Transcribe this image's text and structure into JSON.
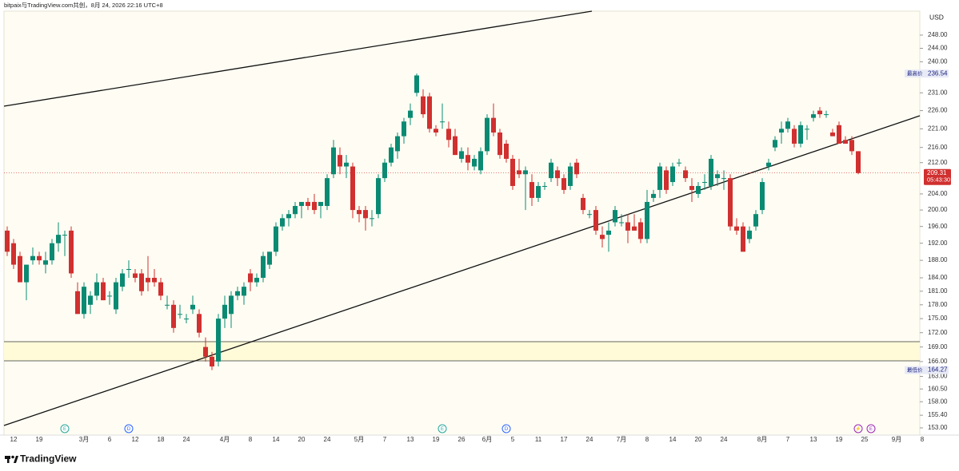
{
  "chart_data": {
    "type": "candlestick",
    "header": "bitpaix与TradingView.com共创，8月 24, 2026 22:16 UTC+8",
    "currency": "USD",
    "brand": "TradingView",
    "log_scale": true,
    "up_color": "#0b8a73",
    "down_color": "#d0302f",
    "ylim": [
      151.65,
      255.4
    ],
    "yticks": [
      {
        "value": 248,
        "label": "248.00"
      },
      {
        "value": 244,
        "label": "244.00"
      },
      {
        "value": 240,
        "label": "240.00"
      },
      {
        "value": 231,
        "label": "231.00"
      },
      {
        "value": 226,
        "label": "226.00"
      },
      {
        "value": 221,
        "label": "221.00"
      },
      {
        "value": 216,
        "label": "216.00"
      },
      {
        "value": 212,
        "label": "212.00"
      },
      {
        "value": 204,
        "label": "204.00"
      },
      {
        "value": 200,
        "label": "200.00"
      },
      {
        "value": 196,
        "label": "196.00"
      },
      {
        "value": 192,
        "label": "192.00"
      },
      {
        "value": 188,
        "label": "188.00"
      },
      {
        "value": 184,
        "label": "184.00"
      },
      {
        "value": 181,
        "label": "181.00"
      },
      {
        "value": 178,
        "label": "178.00"
      },
      {
        "value": 175,
        "label": "175.00"
      },
      {
        "value": 172,
        "label": "172.00"
      },
      {
        "value": 169,
        "label": "169.00"
      },
      {
        "value": 166,
        "label": "166.00"
      },
      {
        "value": 163,
        "label": "163.00"
      },
      {
        "value": 160.5,
        "label": "160.50"
      },
      {
        "value": 158,
        "label": "158.00"
      },
      {
        "value": 155.4,
        "label": "155.40"
      },
      {
        "value": 153,
        "label": "153.00"
      }
    ],
    "high_label": "最高价",
    "high_value": 236.54,
    "low_label": "最低价",
    "low_value": 164.27,
    "last_value": 209.31,
    "countdown": "05:43:30",
    "events": [
      "E",
      "D",
      "E",
      "D",
      "⚡",
      "E"
    ],
    "categories": [
      null,
      "12",
      null,
      null,
      null,
      "19",
      null,
      null,
      null,
      null,
      null,
      null,
      "3月",
      null,
      null,
      null,
      "6",
      null,
      null,
      null,
      "12",
      null,
      null,
      null,
      "18",
      null,
      null,
      null,
      "24",
      null,
      null,
      null,
      null,
      null,
      "4月",
      null,
      null,
      null,
      "8",
      null,
      null,
      null,
      "14",
      null,
      null,
      null,
      "20",
      null,
      null,
      null,
      "24",
      null,
      null,
      null,
      null,
      "5月",
      null,
      null,
      null,
      "7",
      null,
      null,
      null,
      "13",
      null,
      null,
      null,
      "19",
      null,
      null,
      null,
      "26",
      null,
      null,
      null,
      "6月",
      null,
      null,
      null,
      "5",
      null,
      null,
      null,
      "11",
      null,
      null,
      null,
      "17",
      null,
      null,
      null,
      "24",
      null,
      null,
      null,
      null,
      "7月",
      null,
      null,
      null,
      "8",
      null,
      null,
      null,
      "14",
      null,
      null,
      null,
      "20",
      null,
      null,
      null,
      "24",
      null,
      null,
      null,
      null,
      null,
      "8月",
      null,
      null,
      null,
      "7",
      null,
      null,
      null,
      "13",
      null,
      null,
      null,
      "19",
      null,
      null,
      null,
      "25",
      null,
      null,
      null,
      null,
      "9月",
      null,
      null,
      null,
      "8"
    ],
    "open": [
      195,
      192,
      189,
      183,
      188,
      189,
      187,
      188,
      192,
      194,
      195,
      181,
      176,
      178,
      180,
      183,
      180,
      177,
      182,
      186,
      185,
      185,
      184,
      184,
      183,
      178,
      178,
      176,
      175,
      177,
      176,
      169,
      167,
      166,
      175,
      176,
      180,
      180,
      185,
      183,
      184,
      187,
      190,
      196,
      198,
      199,
      201,
      202,
      202,
      201,
      201,
      209,
      214,
      211,
      211,
      200,
      200,
      198,
      199,
      208,
      212,
      215,
      219,
      224,
      231,
      230,
      230,
      221,
      223,
      221,
      219,
      213,
      214,
      211,
      210,
      215,
      224,
      220,
      217,
      213,
      210,
      209,
      207,
      203,
      206,
      208,
      210,
      208,
      206,
      212,
      203,
      199,
      200,
      194,
      194,
      197,
      197,
      197,
      196,
      197,
      193,
      203,
      205,
      210,
      207,
      212,
      210,
      206,
      204,
      207,
      206,
      208,
      208,
      208,
      196,
      196,
      193,
      196,
      200,
      211,
      216,
      220,
      221,
      221,
      217,
      221,
      224,
      226,
      225,
      220,
      222,
      218,
      218,
      215,
      null,
      null,
      null,
      null,
      null,
      null,
      null,
      null,
      null,
      null
    ],
    "high": [
      196,
      193,
      190,
      187,
      191,
      190,
      190,
      193,
      197,
      195,
      196,
      183,
      183,
      181,
      185,
      184,
      181,
      184,
      186,
      188,
      186,
      186,
      189,
      186,
      184,
      180,
      179,
      178,
      176,
      180,
      177,
      171,
      168,
      176,
      180,
      181,
      182,
      183,
      186,
      185,
      190,
      190,
      197,
      199,
      200,
      202,
      202,
      203,
      204,
      202,
      209,
      218,
      216,
      214,
      212,
      201,
      201,
      200,
      209,
      213,
      217,
      220,
      224,
      228,
      236.54,
      232,
      231,
      222,
      228,
      223,
      221,
      216,
      216,
      214,
      216,
      225,
      228,
      221,
      218,
      214,
      213,
      211,
      209,
      207,
      207,
      213,
      211,
      209,
      212,
      213,
      204,
      200,
      201,
      196,
      197,
      201,
      199,
      199,
      199,
      198,
      205,
      205,
      212,
      211,
      212,
      213,
      211,
      208,
      207,
      209,
      214,
      210,
      210,
      209,
      198,
      197,
      196,
      200,
      208,
      213,
      219,
      223,
      224,
      222,
      223,
      222,
      226,
      227,
      226,
      221,
      223,
      219,
      219,
      215,
      null,
      null,
      null,
      null,
      null,
      null,
      null,
      null,
      null,
      null
    ],
    "low": [
      189,
      186,
      183,
      179,
      187,
      187,
      185,
      187,
      190,
      189,
      184,
      176,
      175,
      176,
      179,
      179,
      178,
      176,
      181,
      184,
      183,
      180,
      181,
      182,
      179,
      177,
      172,
      175,
      174,
      176,
      171,
      166,
      164.27,
      165,
      173,
      173,
      179,
      178,
      181,
      182,
      183,
      186,
      189,
      195,
      196,
      198,
      198,
      200,
      199,
      198,
      200,
      208,
      209,
      208,
      198,
      197,
      195,
      196,
      198,
      207,
      211,
      213,
      217,
      222,
      230,
      224,
      220,
      219,
      221,
      216,
      214,
      212,
      210,
      210,
      209,
      214,
      219,
      213,
      212,
      205,
      208,
      200,
      201,
      202,
      205,
      207,
      206,
      204,
      205,
      208,
      199,
      198,
      194,
      191,
      190,
      196,
      196,
      192,
      195,
      192,
      192,
      202,
      203,
      204,
      206,
      211,
      207,
      202,
      203,
      205,
      205,
      206,
      205,
      195,
      194,
      190,
      192,
      195,
      199,
      210,
      215,
      217,
      220,
      216,
      216,
      218,
      223,
      224,
      224,
      219,
      217,
      217,
      214,
      209,
      null,
      null,
      null,
      null,
      null,
      null,
      null,
      null,
      null,
      null
    ],
    "close": [
      190,
      187,
      183,
      187,
      189,
      188,
      188,
      192,
      194,
      194,
      185,
      176,
      182,
      180,
      183,
      179,
      180,
      183,
      185,
      186,
      184,
      181,
      183,
      183,
      180,
      178,
      173,
      176,
      175,
      178,
      172,
      167,
      165,
      175,
      178,
      180,
      181,
      182,
      183,
      184,
      189,
      190,
      196,
      198,
      199,
      201,
      202,
      201,
      200,
      202,
      208,
      216,
      211,
      212,
      200,
      199,
      198,
      198,
      208,
      212,
      216,
      219,
      223,
      226,
      236,
      225,
      221,
      220,
      223,
      218,
      214,
      215,
      212,
      213,
      215,
      224,
      220,
      214,
      213,
      206,
      209,
      210,
      203,
      206,
      206,
      212,
      208,
      205,
      211,
      209,
      200,
      199,
      195,
      193,
      195,
      200,
      197,
      195,
      195,
      193,
      202,
      204,
      211,
      205,
      211,
      212,
      208,
      205,
      206,
      207,
      213,
      209,
      208,
      196,
      195,
      190,
      195,
      199,
      207,
      212,
      218,
      221,
      223,
      217,
      222,
      221,
      225,
      225,
      225,
      219,
      217,
      217,
      215,
      209.31,
      null,
      null,
      null,
      null,
      null,
      null,
      null,
      null,
      null,
      null
    ]
  }
}
